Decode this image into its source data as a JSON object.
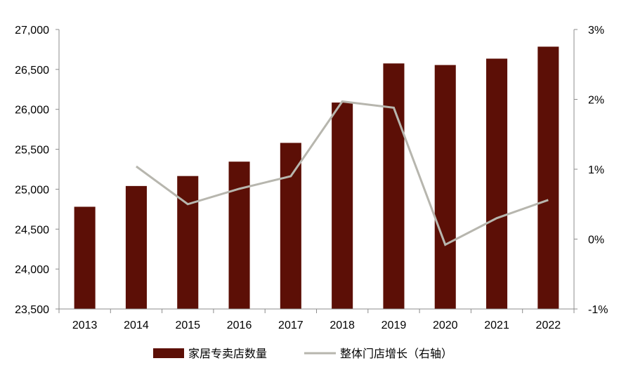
{
  "chart_data": {
    "type": "bar",
    "categories": [
      "2013",
      "2014",
      "2015",
      "2016",
      "2017",
      "2018",
      "2019",
      "2020",
      "2021",
      "2022"
    ],
    "series": [
      {
        "name": "家居专卖店数量",
        "type": "bar",
        "axis": "left",
        "color": "#5c0f06",
        "values": [
          24780,
          25040,
          25165,
          25345,
          25580,
          26085,
          26575,
          26555,
          26635,
          26785
        ]
      },
      {
        "name": "整体门店增长（右轴）",
        "type": "line",
        "axis": "right",
        "color": "#b7b6ae",
        "values": [
          null,
          1.04,
          0.5,
          0.72,
          0.9,
          1.97,
          1.88,
          -0.08,
          0.3,
          0.56
        ]
      }
    ],
    "y_left": {
      "min": 23500,
      "max": 27000,
      "ticks": [
        23500,
        24000,
        24500,
        25000,
        25500,
        26000,
        26500,
        27000
      ],
      "tick_labels": [
        "23,500",
        "24,000",
        "24,500",
        "25,000",
        "25,500",
        "26,000",
        "26,500",
        "27,000"
      ]
    },
    "y_right": {
      "min": -1,
      "max": 3,
      "ticks": [
        -1,
        0,
        1,
        2,
        3
      ],
      "tick_labels": [
        "-1%",
        "0%",
        "1%",
        "2%",
        "3%"
      ]
    },
    "grid": false,
    "legend_position": "bottom"
  }
}
